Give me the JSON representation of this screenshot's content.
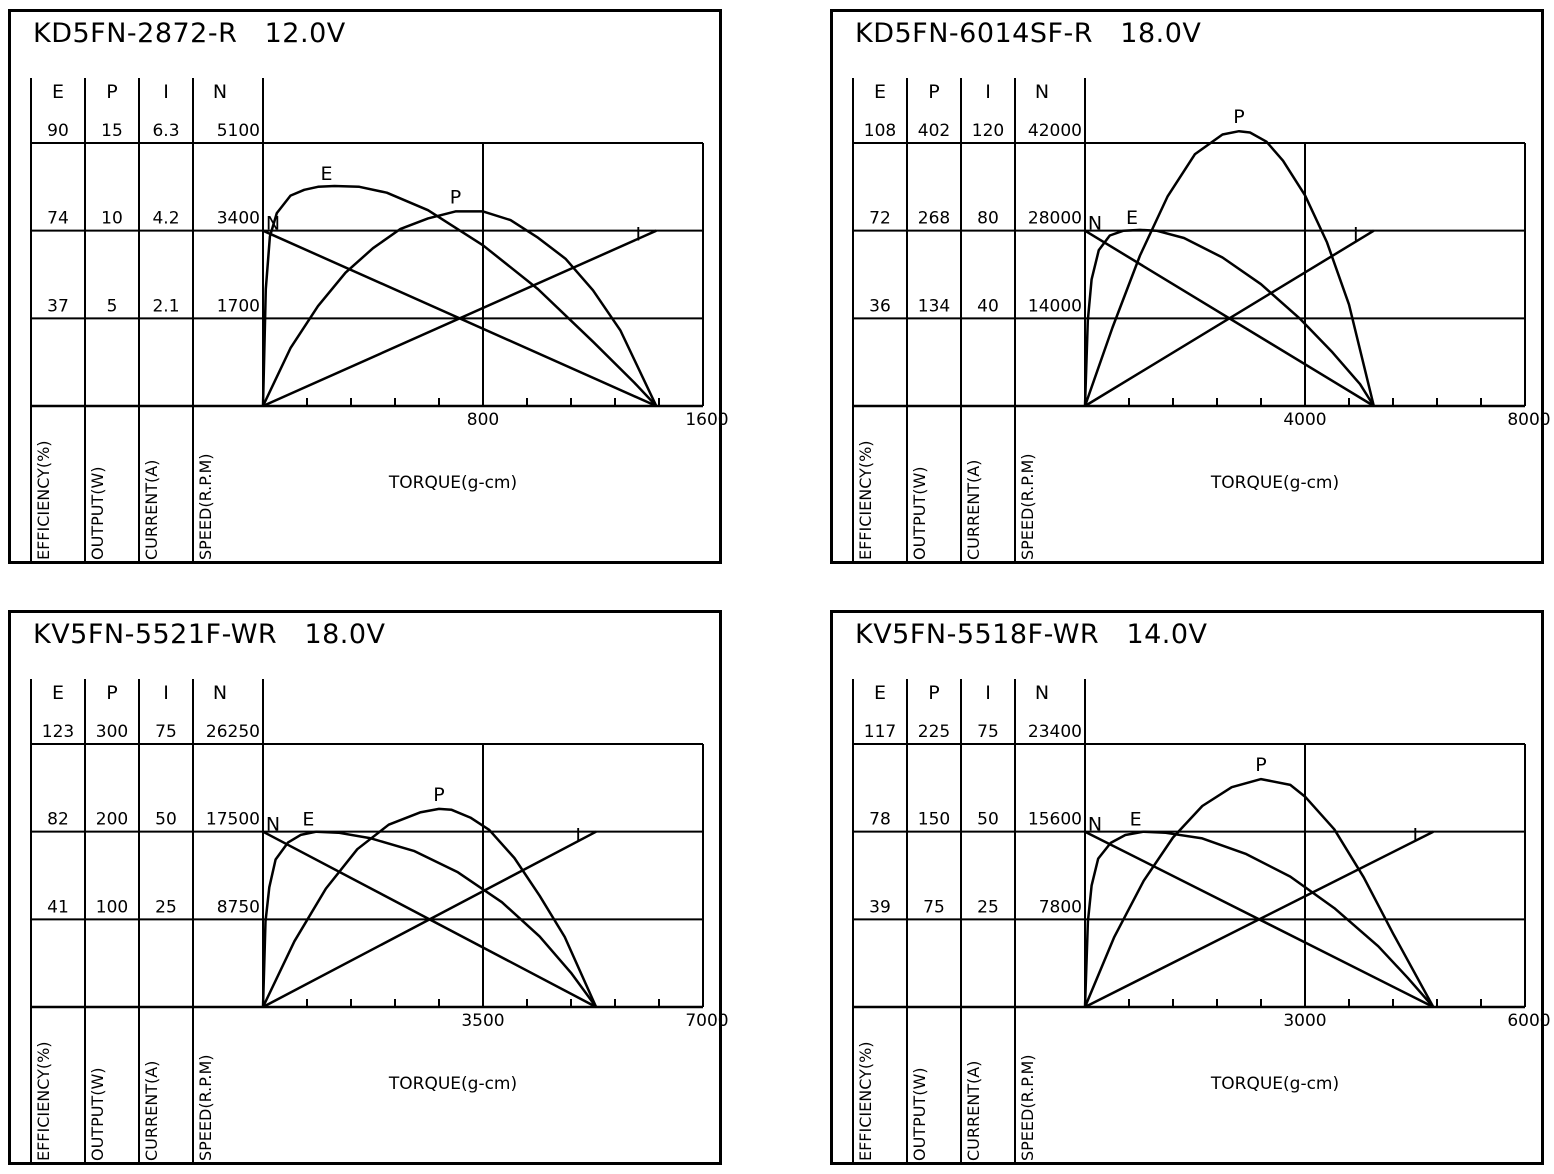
{
  "chart_data": [
    {
      "type": "line",
      "title": "KD5FN-2872-R",
      "voltage": "12.0V",
      "columns": [
        {
          "key": "E",
          "values": [
            "90",
            "74",
            "37"
          ],
          "label": "EFFICIENCY(%)"
        },
        {
          "key": "P",
          "values": [
            "15",
            "10",
            "5"
          ],
          "label": "OUTPUT(W)"
        },
        {
          "key": "I",
          "values": [
            "6.3",
            "4.2",
            "2.1"
          ],
          "label": "CURRENT(A)"
        },
        {
          "key": "N",
          "values": [
            "5100",
            "3400",
            "1700"
          ],
          "label": "SPEED(R.P.M)"
        }
      ],
      "xlabel": "TORQUE(g-cm)",
      "xlim": [
        0,
        1600
      ],
      "x_ticks": [
        "800",
        "1600"
      ],
      "series": [
        {
          "name": "N",
          "x": [
            0,
            1430
          ],
          "y": [
            3400,
            0
          ]
        },
        {
          "name": "I",
          "x": [
            0,
            1430
          ],
          "y": [
            0,
            4.2
          ]
        },
        {
          "name": "E",
          "x": [
            0,
            10,
            25,
            50,
            100,
            150,
            200,
            260,
            350,
            450,
            600,
            800,
            1000,
            1200,
            1350,
            1430
          ],
          "y": [
            0,
            40,
            58,
            66,
            72,
            74,
            75,
            75.3,
            75,
            73,
            67,
            55,
            40,
            22,
            8,
            0
          ]
        },
        {
          "name": "P",
          "x": [
            0,
            100,
            200,
            300,
            400,
            500,
            600,
            700,
            800,
            900,
            1000,
            1100,
            1200,
            1300,
            1430
          ],
          "y": [
            0,
            3.3,
            5.7,
            7.6,
            9.0,
            10.1,
            10.7,
            11.1,
            11.1,
            10.6,
            9.6,
            8.4,
            6.6,
            4.3,
            0
          ]
        }
      ],
      "annotations": [
        "N",
        "E",
        "P",
        "I"
      ]
    },
    {
      "type": "line",
      "title": "KD5FN-6014SF-R",
      "voltage": "18.0V",
      "columns": [
        {
          "key": "E",
          "values": [
            "108",
            "72",
            "36"
          ],
          "label": "EFFICIENCY(%)"
        },
        {
          "key": "P",
          "values": [
            "402",
            "268",
            "134"
          ],
          "label": "OUTPUT(W)"
        },
        {
          "key": "I",
          "values": [
            "120",
            "80",
            "40"
          ],
          "label": "CURRENT(A)"
        },
        {
          "key": "N",
          "values": [
            "42000",
            "28000",
            "14000"
          ],
          "label": "SPEED(R.P.M)"
        }
      ],
      "xlabel": "TORQUE(g-cm)",
      "xlim": [
        0,
        8000
      ],
      "x_ticks": [
        "4000",
        "8000"
      ],
      "series": [
        {
          "name": "N",
          "x": [
            0,
            5250
          ],
          "y": [
            28000,
            0
          ]
        },
        {
          "name": "I",
          "x": [
            0,
            5250
          ],
          "y": [
            0,
            80
          ]
        },
        {
          "name": "E",
          "x": [
            0,
            50,
            120,
            250,
            450,
            700,
            1000,
            1300,
            1800,
            2500,
            3200,
            3900,
            4500,
            5000,
            5250
          ],
          "y": [
            0,
            35,
            52,
            64,
            70,
            72,
            72.3,
            72,
            69,
            61,
            50,
            36,
            22,
            9,
            0
          ]
        },
        {
          "name": "P",
          "x": [
            0,
            500,
            1000,
            1500,
            2000,
            2500,
            2800,
            3000,
            3300,
            3600,
            4000,
            4400,
            4800,
            5250
          ],
          "y": [
            0,
            120,
            230,
            320,
            385,
            415,
            420,
            418,
            404,
            375,
            322,
            250,
            155,
            0
          ]
        }
      ],
      "annotations": [
        "N",
        "E",
        "P",
        "I"
      ]
    },
    {
      "type": "line",
      "title": "KV5FN-5521F-WR",
      "voltage": "18.0V",
      "columns": [
        {
          "key": "E",
          "values": [
            "123",
            "82",
            "41"
          ],
          "label": "EFFICIENCY(%)"
        },
        {
          "key": "P",
          "values": [
            "300",
            "200",
            "100"
          ],
          "label": "OUTPUT(W)"
        },
        {
          "key": "I",
          "values": [
            "75",
            "50",
            "25"
          ],
          "label": "CURRENT(A)"
        },
        {
          "key": "N",
          "values": [
            "26250",
            "17500",
            "8750"
          ],
          "label": "SPEED(R.P.M)"
        }
      ],
      "xlabel": "TORQUE(g-cm)",
      "xlim": [
        0,
        7000
      ],
      "x_ticks": [
        "3500",
        "7000"
      ],
      "series": [
        {
          "name": "N",
          "x": [
            0,
            5300
          ],
          "y": [
            17500,
            0
          ]
        },
        {
          "name": "I",
          "x": [
            0,
            5300
          ],
          "y": [
            0,
            50
          ]
        },
        {
          "name": "E",
          "x": [
            0,
            40,
            100,
            200,
            400,
            600,
            850,
            1200,
            1700,
            2400,
            3100,
            3800,
            4400,
            4900,
            5300
          ],
          "y": [
            0,
            40,
            56,
            69,
            77,
            80.5,
            82,
            81.5,
            79,
            73,
            63,
            49,
            33,
            16,
            0
          ]
        },
        {
          "name": "P",
          "x": [
            0,
            500,
            1000,
            1500,
            2000,
            2500,
            2800,
            3000,
            3300,
            3600,
            4000,
            4400,
            4800,
            5300
          ],
          "y": [
            0,
            75,
            135,
            180,
            208,
            222,
            226,
            225,
            216,
            202,
            170,
            127,
            80,
            0
          ]
        }
      ],
      "annotations": [
        "N",
        "E",
        "P",
        "I"
      ]
    },
    {
      "type": "line",
      "title": "KV5FN-5518F-WR",
      "voltage": "14.0V",
      "columns": [
        {
          "key": "E",
          "values": [
            "117",
            "78",
            "39"
          ],
          "label": "EFFICIENCY(%)"
        },
        {
          "key": "P",
          "values": [
            "225",
            "150",
            "75"
          ],
          "label": "OUTPUT(W)"
        },
        {
          "key": "I",
          "values": [
            "75",
            "50",
            "25"
          ],
          "label": "CURRENT(A)"
        },
        {
          "key": "N",
          "values": [
            "23400",
            "15600",
            "7800"
          ],
          "label": "SPEED(R.P.M)"
        }
      ],
      "xlabel": "TORQUE(g-cm)",
      "xlim": [
        0,
        6000
      ],
      "x_ticks": [
        "3000",
        "6000"
      ],
      "series": [
        {
          "name": "N",
          "x": [
            0,
            4750
          ],
          "y": [
            15600,
            0
          ]
        },
        {
          "name": "I",
          "x": [
            0,
            4750
          ],
          "y": [
            0,
            50
          ]
        },
        {
          "name": "E",
          "x": [
            0,
            40,
            90,
            180,
            350,
            550,
            800,
            1100,
            1600,
            2200,
            2800,
            3400,
            4000,
            4400,
            4750
          ],
          "y": [
            0,
            38,
            54,
            66,
            73,
            76.5,
            78,
            77.5,
            75,
            68,
            58,
            44,
            27,
            13,
            0
          ]
        },
        {
          "name": "P",
          "x": [
            0,
            400,
            800,
            1200,
            1600,
            2000,
            2400,
            2800,
            3000,
            3400,
            3800,
            4200,
            4750
          ],
          "y": [
            0,
            60,
            108,
            145,
            172,
            188,
            195,
            190,
            180,
            152,
            111,
            63,
            0
          ]
        }
      ],
      "annotations": [
        "N",
        "E",
        "P",
        "I"
      ]
    }
  ]
}
